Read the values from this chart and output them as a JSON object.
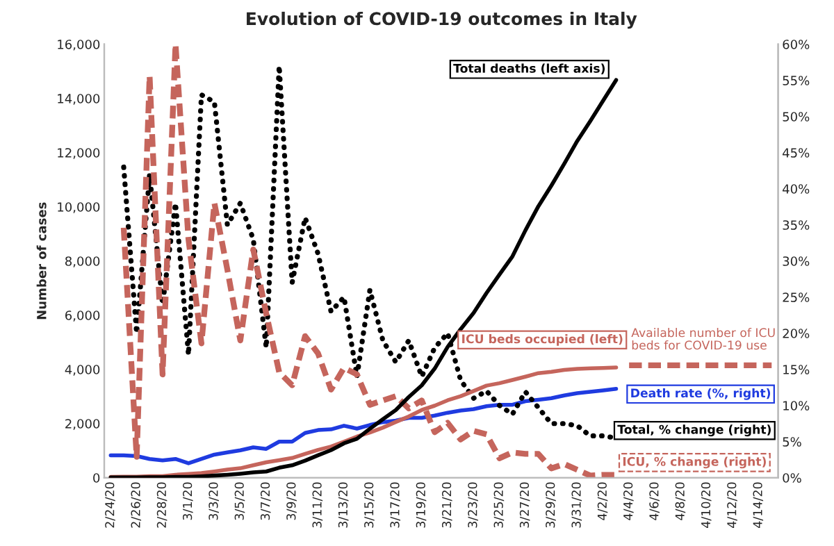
{
  "chart_data": {
    "type": "line",
    "title": "Evolution of COVID-19 outcomes in Italy",
    "ylabel": "Number of cases",
    "categories": [
      "2/24/20",
      null,
      "2/26/20",
      null,
      "2/28/20",
      null,
      "3/1/20",
      null,
      "3/3/20",
      null,
      "3/5/20",
      null,
      "3/7/20",
      null,
      "3/9/20",
      null,
      "3/11/20",
      null,
      "3/13/20",
      null,
      "3/15/20",
      null,
      "3/17/20",
      null,
      "3/19/20",
      null,
      "3/21/20",
      null,
      "3/23/20",
      null,
      "3/25/20",
      null,
      "3/27/20",
      null,
      "3/29/20",
      null,
      "3/31/20",
      null,
      "4/2/20",
      null,
      "4/4/20",
      null,
      "4/6/20",
      null,
      "4/8/20",
      null,
      "4/10/20",
      null,
      "4/12/20",
      null,
      "4/14/20",
      null
    ],
    "ylim": [
      0,
      16000
    ],
    "yticks": [
      0,
      {
        "value": 2000,
        "label": "2,000"
      },
      {
        "value": 4000,
        "label": "4,000"
      },
      {
        "value": 6000,
        "label": "6,000"
      },
      {
        "value": 8000,
        "label": "8,000"
      },
      {
        "value": 10000,
        "label": "10,000"
      },
      {
        "value": 12000,
        "label": "12,000"
      },
      {
        "value": 14000,
        "label": "14,000"
      },
      {
        "value": 16000,
        "label": "16,000"
      }
    ],
    "y2lim": [
      0,
      60
    ],
    "y2ticks": [
      {
        "value": 0,
        "label": "0%"
      },
      {
        "value": 5,
        "label": "5%"
      },
      {
        "value": 10,
        "label": "10%"
      },
      {
        "value": 15,
        "label": "15%"
      },
      {
        "value": 20,
        "label": "20%"
      },
      {
        "value": 25,
        "label": "25%"
      },
      {
        "value": 30,
        "label": "30%"
      },
      {
        "value": 35,
        "label": "35%"
      },
      {
        "value": 40,
        "label": "40%"
      },
      {
        "value": 45,
        "label": "45%"
      },
      {
        "value": 50,
        "label": "50%"
      },
      {
        "value": 55,
        "label": "55%"
      },
      {
        "value": 60,
        "label": "60%"
      }
    ],
    "grid": false,
    "legend": false,
    "series": [
      {
        "name": "Total deaths (left axis)",
        "color": "#000000",
        "line_style": "solid",
        "values": [
          10,
          10,
          10,
          20,
          20,
          30,
          30,
          50,
          80,
          110,
          150,
          200,
          230,
          370,
          460,
          630,
          830,
          1020,
          1270,
          1440,
          1810,
          2160,
          2500,
          2980,
          3410,
          4030,
          4830,
          5480,
          6080,
          6820,
          7500,
          8170,
          9130,
          10020,
          10780,
          11590,
          12430,
          13160,
          13920,
          14680,
          null,
          null,
          null,
          null,
          null,
          null,
          null,
          null,
          null,
          null,
          null,
          null
        ]
      },
      {
        "name": "ICU beds occupied (left)",
        "color": "#c5655c",
        "line_style": "solid",
        "values": [
          30,
          40,
          40,
          60,
          60,
          110,
          140,
          170,
          230,
          300,
          350,
          460,
          570,
          650,
          730,
          880,
          1030,
          1150,
          1330,
          1520,
          1670,
          1850,
          2060,
          2260,
          2500,
          2660,
          2860,
          3010,
          3200,
          3400,
          3490,
          3610,
          3730,
          3860,
          3910,
          3980,
          4020,
          4040,
          4050,
          4070,
          null,
          null,
          null,
          null,
          null,
          null,
          null,
          null,
          null,
          null,
          null,
          null
        ]
      },
      {
        "name": "Available number of ICU beds for COVID-19 use",
        "color": "#c5655c",
        "line_style": "dashed",
        "values": [
          null,
          null,
          null,
          null,
          null,
          null,
          null,
          null,
          null,
          null,
          null,
          null,
          null,
          null,
          null,
          null,
          null,
          null,
          null,
          null,
          null,
          null,
          null,
          null,
          null,
          null,
          null,
          null,
          null,
          null,
          null,
          null,
          null,
          null,
          null,
          null,
          null,
          null,
          null,
          null,
          4150,
          4150,
          4150,
          4150,
          4150,
          4150,
          4150,
          4150,
          4150,
          4150,
          4150,
          4150
        ]
      },
      {
        "name": "Death rate (%, right)",
        "color": "#1f3be0",
        "axis": "y2",
        "line_style": "solid",
        "values": [
          3.1,
          3.1,
          3.0,
          2.6,
          2.4,
          2.6,
          2.0,
          2.6,
          3.2,
          3.5,
          3.8,
          4.2,
          4.0,
          5.0,
          5.0,
          6.2,
          6.6,
          6.7,
          7.2,
          6.8,
          7.3,
          7.7,
          7.9,
          8.3,
          8.3,
          8.6,
          9.0,
          9.3,
          9.5,
          9.9,
          10.1,
          10.1,
          10.6,
          10.8,
          11.0,
          11.4,
          11.7,
          11.9,
          12.1,
          12.3,
          null,
          null,
          null,
          null,
          null,
          null,
          null,
          null,
          null,
          null,
          null,
          null
        ]
      },
      {
        "name": "Total, % change (right)",
        "color": "#000000",
        "axis": "y2",
        "line_style": "dotted",
        "values": [
          null,
          43,
          20,
          42,
          24,
          38,
          17,
          53,
          52,
          35,
          38,
          33,
          18,
          57,
          27,
          36,
          31,
          23,
          25,
          14,
          26,
          19,
          16,
          19,
          14,
          18,
          20,
          13.5,
          11,
          12,
          10,
          8.8,
          11.9,
          9.7,
          7.5,
          7.5,
          7.2,
          5.8,
          5.8,
          5.5,
          null,
          null,
          null,
          null,
          null,
          null,
          null,
          null,
          null,
          null,
          null,
          null
        ]
      },
      {
        "name": "ICU, % change (right)",
        "color": "#c5655c",
        "axis": "y2",
        "line_style": "dashed",
        "values": [
          null,
          34.6,
          2.9,
          55.6,
          14.3,
          60,
          33,
          18.6,
          38,
          28.8,
          19,
          31.6,
          22.7,
          14.6,
          12.8,
          19.6,
          17.2,
          12.2,
          15.2,
          14.3,
          10.1,
          10.7,
          11.3,
          9.6,
          10.7,
          6.3,
          7.6,
          5.3,
          6.5,
          6.0,
          2.7,
          3.5,
          3.3,
          3.3,
          1.3,
          1.9,
          1.1,
          0.3,
          0.4,
          0.4,
          null,
          null,
          null,
          null,
          null,
          null,
          null,
          null,
          null,
          null,
          null,
          null
        ]
      }
    ]
  }
}
